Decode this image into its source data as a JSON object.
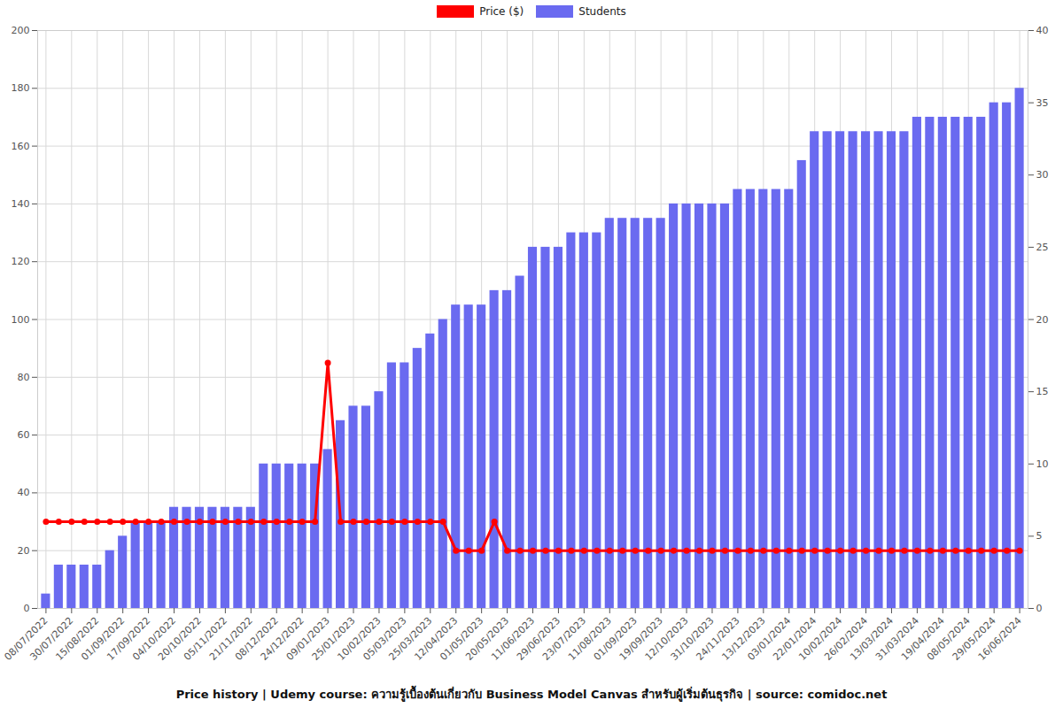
{
  "chart_data": {
    "type": "bar",
    "title": "Price history | Udemy course: ความรู้เบื้องต้นเกี่ยวกับ Business Model Canvas สำหรับผู้เริ่มต้นธุรกิจ | source: comidoc.net",
    "categories": [
      "08/07/2022",
      null,
      "30/07/2022",
      null,
      "15/08/2022",
      null,
      "01/09/2022",
      null,
      "17/09/2022",
      null,
      "04/10/2022",
      null,
      "20/10/2022",
      null,
      "05/11/2022",
      null,
      "21/11/2022",
      null,
      "08/12/2022",
      null,
      "24/12/2022",
      null,
      "09/01/2023",
      null,
      "25/01/2023",
      null,
      "10/02/2023",
      null,
      "05/03/2023",
      null,
      "25/03/2023",
      null,
      "12/04/2023",
      null,
      "01/05/2023",
      null,
      "20/05/2023",
      null,
      "11/06/2023",
      null,
      "29/06/2023",
      null,
      "23/07/2023",
      null,
      "11/08/2023",
      null,
      "01/09/2023",
      null,
      "19/09/2023",
      null,
      "12/10/2023",
      null,
      "31/10/2023",
      null,
      "24/11/2023",
      null,
      "13/12/2023",
      null,
      "03/01/2024",
      null,
      "22/01/2024",
      null,
      "10/02/2024",
      null,
      "26/02/2024",
      null,
      "13/03/2024",
      null,
      "31/03/2024",
      null,
      "19/04/2024",
      null,
      "08/05/2024",
      null,
      "29/05/2024",
      null,
      "16/06/2024"
    ],
    "series": [
      {
        "name": "Price ($)",
        "type": "line",
        "color": "#ff0000",
        "marker": "circle",
        "values": [
          30,
          30,
          30,
          30,
          30,
          30,
          30,
          30,
          30,
          30,
          30,
          30,
          30,
          30,
          30,
          30,
          30,
          30,
          30,
          30,
          30,
          30,
          85,
          30,
          30,
          30,
          30,
          30,
          30,
          30,
          30,
          30,
          20,
          20,
          20,
          30,
          20,
          20,
          20,
          20,
          20,
          20,
          20,
          20,
          20,
          20,
          20,
          20,
          20,
          20,
          20,
          20,
          20,
          20,
          20,
          20,
          20,
          20,
          20,
          20,
          20,
          20,
          20,
          20,
          20,
          20,
          20,
          20,
          20,
          20,
          20,
          20,
          20,
          20,
          20,
          20,
          20
        ]
      },
      {
        "name": "Students",
        "type": "bar",
        "axis": "y2",
        "color": "#6a6af0",
        "values": [
          1,
          3,
          3,
          3,
          3,
          4,
          5,
          6,
          6,
          6,
          7,
          7,
          7,
          7,
          7,
          7,
          7,
          10,
          10,
          10,
          10,
          10,
          11,
          13,
          14,
          14,
          15,
          17,
          17,
          18,
          19,
          20,
          21,
          21,
          21,
          22,
          22,
          23,
          25,
          25,
          25,
          26,
          26,
          26,
          27,
          27,
          27,
          27,
          27,
          28,
          28,
          28,
          28,
          28,
          29,
          29,
          29,
          29,
          29,
          31,
          33,
          33,
          33,
          33,
          33,
          33,
          33,
          33,
          34,
          34,
          34,
          34,
          34,
          34,
          35,
          35,
          36
        ]
      }
    ],
    "ylim": [
      0,
      200
    ],
    "yticks": [
      0,
      20,
      40,
      60,
      80,
      100,
      120,
      140,
      160,
      180,
      200
    ],
    "y2lim": [
      0,
      40
    ],
    "y2ticks": [
      0,
      5,
      10,
      15,
      20,
      25,
      30,
      35,
      40
    ],
    "grid": true,
    "legend": "top"
  }
}
